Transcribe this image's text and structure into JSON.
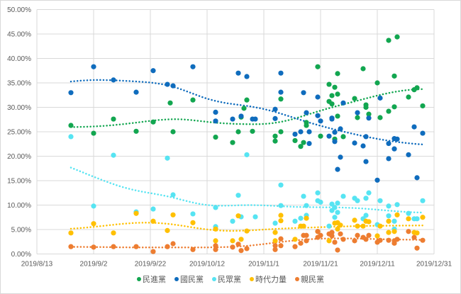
{
  "chart_data": {
    "type": "scatter",
    "trendline": "smoothed (dotted)",
    "ylim": [
      0,
      50
    ],
    "y_tick_labels": [
      "0.00%",
      "5.00%",
      "10.00%",
      "15.00%",
      "20.00%",
      "25.00%",
      "30.00%",
      "35.00%",
      "40.00%",
      "45.00%",
      "50.00%"
    ],
    "xlim": [
      "2019-08-13",
      "2019-12-31"
    ],
    "x_tick_labels": [
      "2019/8/13",
      "2019/9/2",
      "2019/9/22",
      "2019/10/12",
      "2019/11/1",
      "2019/11/21",
      "2019/12/11",
      "2019/12/31"
    ],
    "grid": true,
    "legend_position": "bottom",
    "series": [
      {
        "name": "民進黨",
        "color": "#12a650",
        "points": [
          [
            "2019-08-25",
            26.3
          ],
          [
            "2019-09-02",
            24.7
          ],
          [
            "2019-09-09",
            27.6
          ],
          [
            "2019-09-17",
            25.1
          ],
          [
            "2019-09-23",
            27.0
          ],
          [
            "2019-09-29",
            30.9
          ],
          [
            "2019-09-30",
            25.0
          ],
          [
            "2019-10-07",
            31.5
          ],
          [
            "2019-10-15",
            23.9
          ],
          [
            "2019-10-21",
            22.8
          ],
          [
            "2019-10-23",
            25.0
          ],
          [
            "2019-10-24",
            28.0
          ],
          [
            "2019-10-25",
            29.8
          ],
          [
            "2019-10-26",
            31.5
          ],
          [
            "2019-10-28",
            25.1
          ],
          [
            "2019-11-05",
            24.1
          ],
          [
            "2019-11-05",
            23.1
          ],
          [
            "2019-11-07",
            31.7
          ],
          [
            "2019-11-07",
            25.0
          ],
          [
            "2019-11-12",
            23.2
          ],
          [
            "2019-11-14",
            22.0
          ],
          [
            "2019-11-15",
            22.8
          ],
          [
            "2019-11-16",
            26.9
          ],
          [
            "2019-11-16",
            26.3
          ],
          [
            "2019-11-20",
            38.3
          ],
          [
            "2019-11-21",
            24.1
          ],
          [
            "2019-11-24",
            34.7
          ],
          [
            "2019-11-24",
            31.2
          ],
          [
            "2019-11-25",
            32.4
          ],
          [
            "2019-11-25",
            30.7
          ],
          [
            "2019-11-26",
            34.1
          ],
          [
            "2019-11-26",
            23.5
          ],
          [
            "2019-11-27",
            32.7
          ],
          [
            "2019-11-27",
            36.9
          ],
          [
            "2019-11-27",
            28.2
          ],
          [
            "2019-11-29",
            24.0
          ],
          [
            "2019-12-03",
            31.8
          ],
          [
            "2019-12-04",
            27.9
          ],
          [
            "2019-12-06",
            37.9
          ],
          [
            "2019-12-07",
            30.5
          ],
          [
            "2019-12-07",
            30.0
          ],
          [
            "2019-12-08",
            28.6
          ],
          [
            "2019-12-11",
            35.0
          ],
          [
            "2019-12-12",
            27.9
          ],
          [
            "2019-12-15",
            29.2
          ],
          [
            "2019-12-15",
            43.7
          ],
          [
            "2019-12-17",
            30.1
          ],
          [
            "2019-12-17",
            36.4
          ],
          [
            "2019-12-18",
            44.4
          ],
          [
            "2019-12-22",
            32.1
          ],
          [
            "2019-12-24",
            33.6
          ],
          [
            "2019-12-25",
            34.0
          ],
          [
            "2019-12-27",
            30.3
          ]
        ]
      },
      {
        "name": "國民黨",
        "color": "#0f6cbd",
        "points": [
          [
            "2019-08-25",
            33.0
          ],
          [
            "2019-09-02",
            38.3
          ],
          [
            "2019-09-09",
            35.6
          ],
          [
            "2019-09-17",
            33.1
          ],
          [
            "2019-09-23",
            37.5
          ],
          [
            "2019-09-28",
            34.7
          ],
          [
            "2019-09-30",
            34.4
          ],
          [
            "2019-10-07",
            38.3
          ],
          [
            "2019-10-15",
            29.0
          ],
          [
            "2019-10-15",
            27.2
          ],
          [
            "2019-10-21",
            27.6
          ],
          [
            "2019-10-23",
            37.0
          ],
          [
            "2019-10-24",
            28.2
          ],
          [
            "2019-10-26",
            36.3
          ],
          [
            "2019-10-28",
            27.6
          ],
          [
            "2019-10-29",
            27.6
          ],
          [
            "2019-11-05",
            29.6
          ],
          [
            "2019-11-05",
            27.7
          ],
          [
            "2019-11-07",
            37.0
          ],
          [
            "2019-11-07",
            33.1
          ],
          [
            "2019-11-12",
            24.5
          ],
          [
            "2019-11-14",
            25.0
          ],
          [
            "2019-11-15",
            33.0
          ],
          [
            "2019-11-16",
            28.9
          ],
          [
            "2019-11-17",
            25.0
          ],
          [
            "2019-11-17",
            22.6
          ],
          [
            "2019-11-20",
            32.1
          ],
          [
            "2019-11-20",
            28.3
          ],
          [
            "2019-11-21",
            27.2
          ],
          [
            "2019-11-24",
            24.1
          ],
          [
            "2019-11-25",
            27.6
          ],
          [
            "2019-11-25",
            27.8
          ],
          [
            "2019-11-26",
            24.9
          ],
          [
            "2019-11-26",
            23.0
          ],
          [
            "2019-11-27",
            17.3
          ],
          [
            "2019-11-28",
            25.6
          ],
          [
            "2019-11-28",
            19.8
          ],
          [
            "2019-11-29",
            30.9
          ],
          [
            "2019-12-03",
            22.7
          ],
          [
            "2019-12-04",
            28.9
          ],
          [
            "2019-12-06",
            22.1
          ],
          [
            "2019-12-07",
            24.0
          ],
          [
            "2019-12-07",
            18.9
          ],
          [
            "2019-12-08",
            27.8
          ],
          [
            "2019-12-11",
            15.1
          ],
          [
            "2019-12-12",
            31.9
          ],
          [
            "2019-12-15",
            22.6
          ],
          [
            "2019-12-15",
            19.5
          ],
          [
            "2019-12-17",
            23.6
          ],
          [
            "2019-12-17",
            21.5
          ],
          [
            "2019-12-18",
            23.5
          ],
          [
            "2019-12-22",
            20.3
          ],
          [
            "2019-12-24",
            26.0
          ],
          [
            "2019-12-25",
            15.6
          ],
          [
            "2019-12-27",
            24.7
          ]
        ]
      },
      {
        "name": "民眾黨",
        "color": "#56e4f2",
        "points": [
          [
            "2019-08-25",
            24.0
          ],
          [
            "2019-09-02",
            9.8
          ],
          [
            "2019-09-09",
            20.2
          ],
          [
            "2019-09-17",
            8.6
          ],
          [
            "2019-09-23",
            9.2
          ],
          [
            "2019-09-28",
            19.6
          ],
          [
            "2019-09-30",
            12.1
          ],
          [
            "2019-10-07",
            8.2
          ],
          [
            "2019-10-15",
            9.5
          ],
          [
            "2019-10-15",
            5.6
          ],
          [
            "2019-10-21",
            6.7
          ],
          [
            "2019-10-23",
            12.0
          ],
          [
            "2019-10-24",
            7.6
          ],
          [
            "2019-10-26",
            20.3
          ],
          [
            "2019-10-29",
            7.6
          ],
          [
            "2019-11-05",
            6.3
          ],
          [
            "2019-11-07",
            14.1
          ],
          [
            "2019-11-07",
            9.9
          ],
          [
            "2019-11-12",
            6.7
          ],
          [
            "2019-11-14",
            7.3
          ],
          [
            "2019-11-15",
            11.8
          ],
          [
            "2019-11-16",
            7.9
          ],
          [
            "2019-11-16",
            9.9
          ],
          [
            "2019-11-20",
            12.5
          ],
          [
            "2019-11-20",
            10.9
          ],
          [
            "2019-11-21",
            10.6
          ],
          [
            "2019-11-24",
            5.7
          ],
          [
            "2019-11-25",
            10.2
          ],
          [
            "2019-11-25",
            8.9
          ],
          [
            "2019-11-26",
            9.5
          ],
          [
            "2019-11-26",
            7.5
          ],
          [
            "2019-11-27",
            10.4
          ],
          [
            "2019-11-27",
            8.5
          ],
          [
            "2019-11-29",
            11.8
          ],
          [
            "2019-12-03",
            11.4
          ],
          [
            "2019-12-04",
            10.9
          ],
          [
            "2019-12-06",
            7.2
          ],
          [
            "2019-12-07",
            11.4
          ],
          [
            "2019-12-07",
            7.9
          ],
          [
            "2019-12-08",
            12.5
          ],
          [
            "2019-12-11",
            6.0
          ],
          [
            "2019-12-12",
            10.9
          ],
          [
            "2019-12-15",
            9.8
          ],
          [
            "2019-12-15",
            7.8
          ],
          [
            "2019-12-17",
            6.7
          ],
          [
            "2019-12-17",
            5.1
          ],
          [
            "2019-12-18",
            10.1
          ],
          [
            "2019-12-22",
            8.3
          ],
          [
            "2019-12-24",
            7.2
          ],
          [
            "2019-12-25",
            7.2
          ],
          [
            "2019-12-27",
            10.9
          ]
        ]
      },
      {
        "name": "時代力量",
        "color": "#ffc000",
        "points": [
          [
            "2019-08-25",
            4.3
          ],
          [
            "2019-09-02",
            6.2
          ],
          [
            "2019-09-09",
            4.3
          ],
          [
            "2019-09-17",
            8.3
          ],
          [
            "2019-09-23",
            6.7
          ],
          [
            "2019-09-28",
            4.8
          ],
          [
            "2019-09-30",
            8.0
          ],
          [
            "2019-10-07",
            6.4
          ],
          [
            "2019-10-15",
            5.1
          ],
          [
            "2019-10-15",
            2.7
          ],
          [
            "2019-10-21",
            2.7
          ],
          [
            "2019-10-23",
            7.8
          ],
          [
            "2019-10-24",
            3.0
          ],
          [
            "2019-10-26",
            4.7
          ],
          [
            "2019-11-05",
            4.4
          ],
          [
            "2019-11-05",
            2.7
          ],
          [
            "2019-11-07",
            7.9
          ],
          [
            "2019-11-07",
            6.8
          ],
          [
            "2019-11-12",
            3.0
          ],
          [
            "2019-11-14",
            5.7
          ],
          [
            "2019-11-15",
            5.7
          ],
          [
            "2019-11-16",
            7.3
          ],
          [
            "2019-11-20",
            4.6
          ],
          [
            "2019-11-24",
            2.7
          ],
          [
            "2019-11-26",
            6.3
          ],
          [
            "2019-11-27",
            6.4
          ],
          [
            "2019-11-27",
            5.1
          ],
          [
            "2019-11-28",
            5.9
          ],
          [
            "2019-12-03",
            6.9
          ],
          [
            "2019-12-04",
            5.7
          ],
          [
            "2019-12-06",
            5.7
          ],
          [
            "2019-12-07",
            6.7
          ],
          [
            "2019-12-08",
            6.6
          ],
          [
            "2019-12-11",
            3.7
          ],
          [
            "2019-12-12",
            5.7
          ],
          [
            "2019-12-15",
            6.7
          ],
          [
            "2019-12-15",
            4.4
          ],
          [
            "2019-12-17",
            4.6
          ],
          [
            "2019-12-18",
            8.0
          ],
          [
            "2019-12-22",
            7.2
          ],
          [
            "2019-12-24",
            4.4
          ],
          [
            "2019-12-25",
            4.3
          ],
          [
            "2019-12-27",
            7.5
          ]
        ]
      },
      {
        "name": "親民黨",
        "color": "#ed7d31",
        "points": [
          [
            "2019-08-25",
            1.5
          ],
          [
            "2019-09-02",
            1.4
          ],
          [
            "2019-09-09",
            1.5
          ],
          [
            "2019-09-17",
            1.5
          ],
          [
            "2019-09-23",
            0.5
          ],
          [
            "2019-09-28",
            1.5
          ],
          [
            "2019-09-30",
            2.1
          ],
          [
            "2019-10-07",
            0.9
          ],
          [
            "2019-10-15",
            0.9
          ],
          [
            "2019-10-15",
            1.7
          ],
          [
            "2019-10-21",
            1.4
          ],
          [
            "2019-10-23",
            2.0
          ],
          [
            "2019-10-24",
            0.7
          ],
          [
            "2019-10-26",
            1.1
          ],
          [
            "2019-11-05",
            1.7
          ],
          [
            "2019-11-05",
            0.9
          ],
          [
            "2019-11-07",
            3.1
          ],
          [
            "2019-11-07",
            1.7
          ],
          [
            "2019-11-12",
            1.5
          ],
          [
            "2019-11-14",
            2.2
          ],
          [
            "2019-11-15",
            3.8
          ],
          [
            "2019-11-16",
            3.8
          ],
          [
            "2019-11-16",
            2.7
          ],
          [
            "2019-11-20",
            4.6
          ],
          [
            "2019-11-20",
            3.4
          ],
          [
            "2019-11-21",
            3.8
          ],
          [
            "2019-11-24",
            4.1
          ],
          [
            "2019-11-25",
            4.4
          ],
          [
            "2019-11-25",
            3.7
          ],
          [
            "2019-11-26",
            2.4
          ],
          [
            "2019-11-27",
            0.8
          ],
          [
            "2019-11-28",
            4.1
          ],
          [
            "2019-11-29",
            3.0
          ],
          [
            "2019-12-03",
            2.7
          ],
          [
            "2019-12-04",
            3.8
          ],
          [
            "2019-12-06",
            3.4
          ],
          [
            "2019-12-07",
            3.0
          ],
          [
            "2019-12-08",
            3.8
          ],
          [
            "2019-12-11",
            2.4
          ],
          [
            "2019-12-12",
            2.8
          ],
          [
            "2019-12-15",
            2.8
          ],
          [
            "2019-12-17",
            2.7
          ],
          [
            "2019-12-17",
            2.2
          ],
          [
            "2019-12-18",
            3.0
          ],
          [
            "2019-12-22",
            4.6
          ],
          [
            "2019-12-24",
            3.4
          ],
          [
            "2019-12-25",
            1.2
          ],
          [
            "2019-12-27",
            2.8
          ]
        ]
      }
    ]
  }
}
